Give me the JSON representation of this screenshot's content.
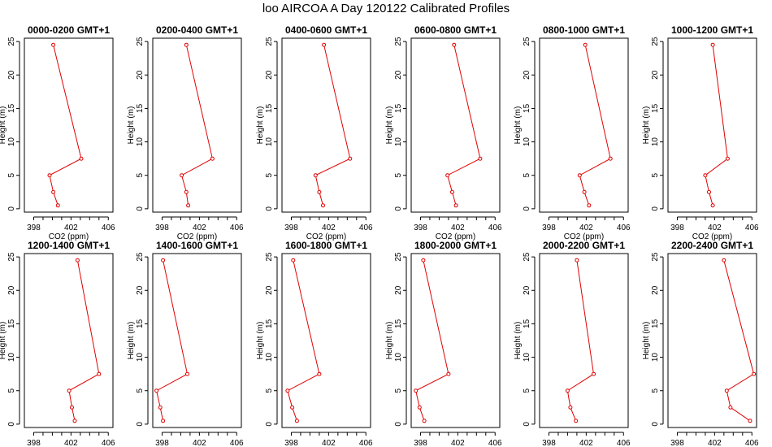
{
  "title": "loo AIRCOA A  Day 120122  Calibrated Profiles",
  "xlabel": "CO2 (ppm)",
  "ylabel": "Height (m)",
  "colors": {
    "series": "#e00000",
    "axis": "#000000",
    "background": "#ffffff"
  },
  "chart_data": [
    {
      "type": "line",
      "title": "0000-0200 GMT+1",
      "xlabel": "CO2 (ppm)",
      "ylabel": "Height (m)",
      "xlim": [
        397,
        406.5
      ],
      "ylim": [
        -0.5,
        25.5
      ],
      "xticks": [
        398,
        402,
        406
      ],
      "yticks": [
        0,
        5,
        10,
        15,
        20,
        25
      ],
      "points": [
        {
          "x": 400.1,
          "y": 24.5
        },
        {
          "x": 403.1,
          "y": 7.5
        },
        {
          "x": 399.7,
          "y": 5.0
        },
        {
          "x": 400.1,
          "y": 2.5
        },
        {
          "x": 400.6,
          "y": 0.5
        }
      ]
    },
    {
      "type": "line",
      "title": "0200-0400 GMT+1",
      "xlabel": "CO2 (ppm)",
      "ylabel": "Height (m)",
      "xlim": [
        397,
        406.5
      ],
      "ylim": [
        -0.5,
        25.5
      ],
      "xticks": [
        398,
        402,
        406
      ],
      "yticks": [
        0,
        5,
        10,
        15,
        20,
        25
      ],
      "points": [
        {
          "x": 400.6,
          "y": 24.5
        },
        {
          "x": 403.4,
          "y": 7.5
        },
        {
          "x": 400.1,
          "y": 5.0
        },
        {
          "x": 400.6,
          "y": 2.5
        },
        {
          "x": 400.8,
          "y": 0.5
        }
      ]
    },
    {
      "type": "line",
      "title": "0400-0600 GMT+1",
      "xlabel": "CO2 (ppm)",
      "ylabel": "Height (m)",
      "xlim": [
        397,
        406.5
      ],
      "ylim": [
        -0.5,
        25.5
      ],
      "xticks": [
        398,
        402,
        406
      ],
      "yticks": [
        0,
        5,
        10,
        15,
        20,
        25
      ],
      "points": [
        {
          "x": 401.5,
          "y": 24.5
        },
        {
          "x": 404.3,
          "y": 7.5
        },
        {
          "x": 400.6,
          "y": 5.0
        },
        {
          "x": 401.0,
          "y": 2.5
        },
        {
          "x": 401.4,
          "y": 0.5
        }
      ]
    },
    {
      "type": "line",
      "title": "0600-0800 GMT+1",
      "xlabel": "CO2 (ppm)",
      "ylabel": "Height (m)",
      "xlim": [
        397,
        406.5
      ],
      "ylim": [
        -0.5,
        25.5
      ],
      "xticks": [
        398,
        402,
        406
      ],
      "yticks": [
        0,
        5,
        10,
        15,
        20,
        25
      ],
      "points": [
        {
          "x": 401.6,
          "y": 24.5
        },
        {
          "x": 404.4,
          "y": 7.5
        },
        {
          "x": 400.9,
          "y": 5.0
        },
        {
          "x": 401.4,
          "y": 2.5
        },
        {
          "x": 401.8,
          "y": 0.5
        }
      ]
    },
    {
      "type": "line",
      "title": "0800-1000 GMT+1",
      "xlabel": "CO2 (ppm)",
      "ylabel": "Height (m)",
      "xlim": [
        397,
        406.5
      ],
      "ylim": [
        -0.5,
        25.5
      ],
      "xticks": [
        398,
        402,
        406
      ],
      "yticks": [
        0,
        5,
        10,
        15,
        20,
        25
      ],
      "points": [
        {
          "x": 401.9,
          "y": 24.5
        },
        {
          "x": 404.6,
          "y": 7.5
        },
        {
          "x": 401.3,
          "y": 5.0
        },
        {
          "x": 401.8,
          "y": 2.5
        },
        {
          "x": 402.3,
          "y": 0.5
        }
      ]
    },
    {
      "type": "line",
      "title": "1000-1200 GMT+1",
      "xlabel": "CO2 (ppm)",
      "ylabel": "Height (m)",
      "xlim": [
        397,
        406.5
      ],
      "ylim": [
        -0.5,
        25.5
      ],
      "xticks": [
        398,
        402,
        406
      ],
      "yticks": [
        0,
        5,
        10,
        15,
        20,
        25
      ],
      "points": [
        {
          "x": 401.8,
          "y": 24.5
        },
        {
          "x": 403.4,
          "y": 7.5
        },
        {
          "x": 401.0,
          "y": 5.0
        },
        {
          "x": 401.4,
          "y": 2.5
        },
        {
          "x": 401.8,
          "y": 0.5
        }
      ]
    },
    {
      "type": "line",
      "title": "1200-1400 GMT+1",
      "xlabel": "CO2 (ppm)",
      "ylabel": "Height (m)",
      "xlim": [
        397,
        406.5
      ],
      "ylim": [
        -0.5,
        25.5
      ],
      "xticks": [
        398,
        402,
        406
      ],
      "yticks": [
        0,
        5,
        10,
        15,
        20,
        25
      ],
      "points": [
        {
          "x": 402.7,
          "y": 24.5
        },
        {
          "x": 405.0,
          "y": 7.5
        },
        {
          "x": 401.8,
          "y": 5.0
        },
        {
          "x": 402.1,
          "y": 2.5
        },
        {
          "x": 402.4,
          "y": 0.5
        }
      ]
    },
    {
      "type": "line",
      "title": "1400-1600 GMT+1",
      "xlabel": "CO2 (ppm)",
      "ylabel": "Height (m)",
      "xlim": [
        397,
        406.5
      ],
      "ylim": [
        -0.5,
        25.5
      ],
      "xticks": [
        398,
        402,
        406
      ],
      "yticks": [
        0,
        5,
        10,
        15,
        20,
        25
      ],
      "points": [
        {
          "x": 398.1,
          "y": 24.5
        },
        {
          "x": 400.7,
          "y": 7.5
        },
        {
          "x": 397.4,
          "y": 5.0
        },
        {
          "x": 397.8,
          "y": 2.5
        },
        {
          "x": 398.1,
          "y": 0.5
        }
      ]
    },
    {
      "type": "line",
      "title": "1600-1800 GMT+1",
      "xlabel": "CO2 (ppm)",
      "ylabel": "Height (m)",
      "xlim": [
        397,
        406.5
      ],
      "ylim": [
        -0.5,
        25.5
      ],
      "xticks": [
        398,
        402,
        406
      ],
      "yticks": [
        0,
        5,
        10,
        15,
        20,
        25
      ],
      "points": [
        {
          "x": 398.2,
          "y": 24.5
        },
        {
          "x": 401.0,
          "y": 7.5
        },
        {
          "x": 397.6,
          "y": 5.0
        },
        {
          "x": 398.1,
          "y": 2.5
        },
        {
          "x": 398.6,
          "y": 0.5
        }
      ]
    },
    {
      "type": "line",
      "title": "1800-2000 GMT+1",
      "xlabel": "CO2 (ppm)",
      "ylabel": "Height (m)",
      "xlim": [
        397,
        406.5
      ],
      "ylim": [
        -0.5,
        25.5
      ],
      "xticks": [
        398,
        402,
        406
      ],
      "yticks": [
        0,
        5,
        10,
        15,
        20,
        25
      ],
      "points": [
        {
          "x": 398.3,
          "y": 24.5
        },
        {
          "x": 401.0,
          "y": 7.5
        },
        {
          "x": 397.5,
          "y": 5.0
        },
        {
          "x": 397.9,
          "y": 2.5
        },
        {
          "x": 398.4,
          "y": 0.5
        }
      ]
    },
    {
      "type": "line",
      "title": "2000-2200 GMT+1",
      "xlabel": "CO2 (ppm)",
      "ylabel": "Height (m)",
      "xlim": [
        397,
        406.5
      ],
      "ylim": [
        -0.5,
        25.5
      ],
      "xticks": [
        398,
        402,
        406
      ],
      "yticks": [
        0,
        5,
        10,
        15,
        20,
        25
      ],
      "points": [
        {
          "x": 401.0,
          "y": 24.5
        },
        {
          "x": 402.8,
          "y": 7.5
        },
        {
          "x": 400.0,
          "y": 5.0
        },
        {
          "x": 400.3,
          "y": 2.5
        },
        {
          "x": 400.9,
          "y": 0.5
        }
      ]
    },
    {
      "type": "line",
      "title": "2200-2400 GMT+1",
      "xlabel": "CO2 (ppm)",
      "ylabel": "Height (m)",
      "xlim": [
        397,
        406.5
      ],
      "ylim": [
        -0.5,
        25.5
      ],
      "xticks": [
        398,
        402,
        406
      ],
      "yticks": [
        0,
        5,
        10,
        15,
        20,
        25
      ],
      "points": [
        {
          "x": 403.0,
          "y": 24.5
        },
        {
          "x": 406.2,
          "y": 7.5
        },
        {
          "x": 403.3,
          "y": 5.0
        },
        {
          "x": 403.7,
          "y": 2.5
        },
        {
          "x": 405.8,
          "y": 0.5
        }
      ]
    }
  ]
}
